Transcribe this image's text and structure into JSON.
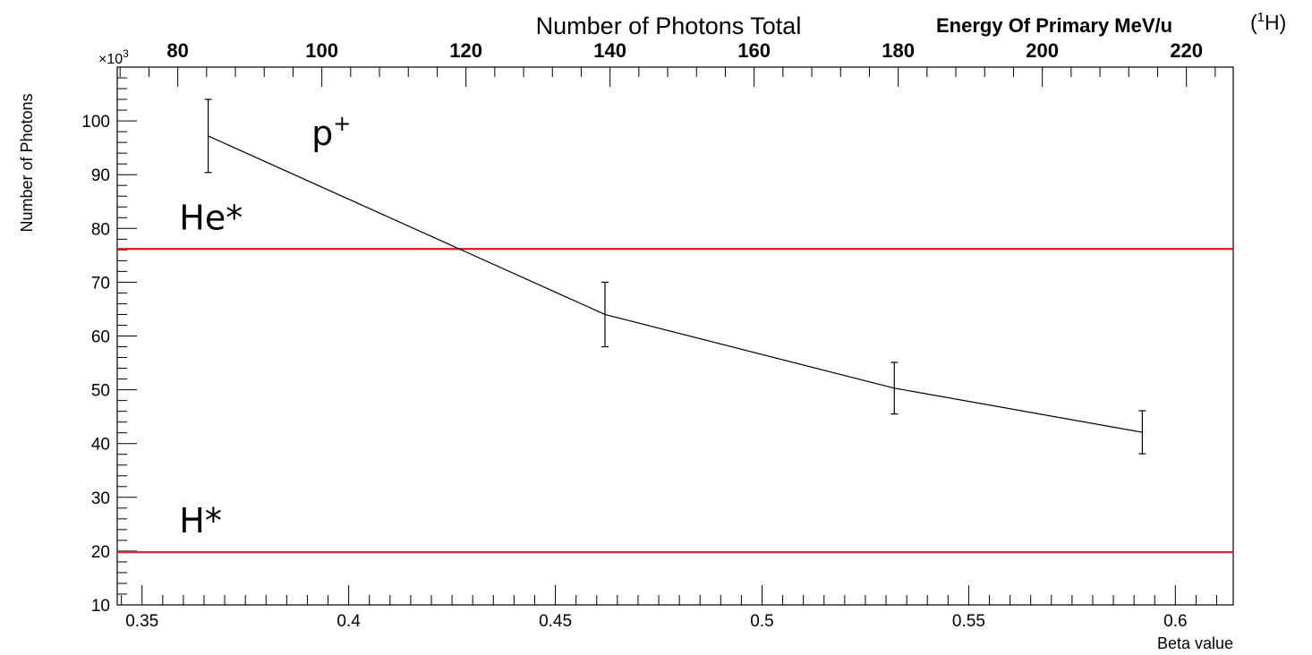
{
  "chart_data": {
    "type": "line",
    "title": "Number of Photons Total",
    "xlabel": "Beta value",
    "ylabel": "Number of Photons",
    "y_multiplier_label": "×10",
    "y_multiplier_exp": "3",
    "top_axis_label": "Energy Of Primary MeV/u",
    "top_axis_suffix_open": "(",
    "top_axis_suffix_sup": "1",
    "top_axis_suffix_close": "H)",
    "xlim": [
      0.344,
      0.614
    ],
    "ylim": [
      10,
      110
    ],
    "top_xlim": [
      71.6,
      226.5
    ],
    "x_ticks": [
      {
        "value": 0.35,
        "label": "0.35"
      },
      {
        "value": 0.4,
        "label": "0.4"
      },
      {
        "value": 0.45,
        "label": "0.45"
      },
      {
        "value": 0.5,
        "label": "0.5"
      },
      {
        "value": 0.55,
        "label": "0.55"
      },
      {
        "value": 0.6,
        "label": "0.6"
      }
    ],
    "y_ticks": [
      {
        "value": 10,
        "label": "10"
      },
      {
        "value": 20,
        "label": "20"
      },
      {
        "value": 30,
        "label": "30"
      },
      {
        "value": 40,
        "label": "40"
      },
      {
        "value": 50,
        "label": "50"
      },
      {
        "value": 60,
        "label": "60"
      },
      {
        "value": 70,
        "label": "70"
      },
      {
        "value": 80,
        "label": "80"
      },
      {
        "value": 90,
        "label": "90"
      },
      {
        "value": 100,
        "label": "100"
      }
    ],
    "top_ticks": [
      {
        "value": 80,
        "label": "80"
      },
      {
        "value": 100,
        "label": "100"
      },
      {
        "value": 120,
        "label": "120"
      },
      {
        "value": 140,
        "label": "140"
      },
      {
        "value": 160,
        "label": "160"
      },
      {
        "value": 180,
        "label": "180"
      },
      {
        "value": 200,
        "label": "200"
      },
      {
        "value": 220,
        "label": "220"
      }
    ],
    "series": [
      {
        "points": [
          {
            "x": 0.366,
            "y": 97.2,
            "err": 6.8
          },
          {
            "x": 0.462,
            "y": 64.0,
            "err": 6.0
          },
          {
            "x": 0.532,
            "y": 50.3,
            "err": 4.8
          },
          {
            "x": 0.592,
            "y": 42.1,
            "err": 4.0
          }
        ]
      }
    ],
    "reference_lines": [
      {
        "label": "He*",
        "y": 76.2,
        "color": "#e8202a",
        "label_x": 0.359,
        "label_y": 79.8
      },
      {
        "label": "H*",
        "y": 19.8,
        "color": "#e8202a",
        "label_x": 0.359,
        "label_y": 23.5
      }
    ],
    "annotations": [
      {
        "text": "p",
        "sup": "+",
        "x": 0.391,
        "y": 95.5
      }
    ],
    "grid": false
  }
}
